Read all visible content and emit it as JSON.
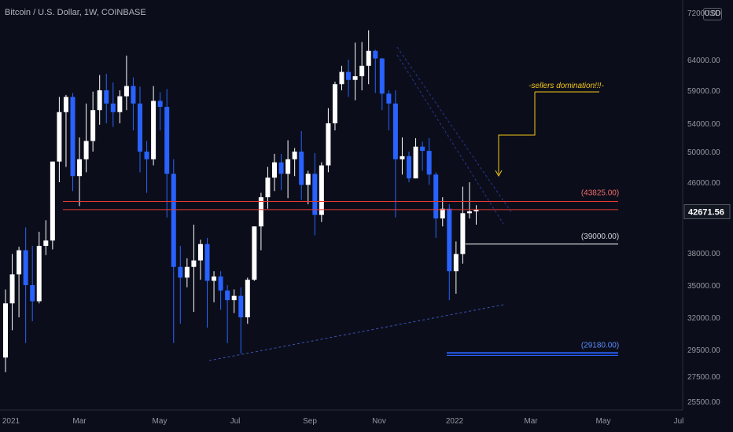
{
  "header": {
    "title": "Bitcoin / U.S. Dollar, 1W, COINBASE"
  },
  "currency_badge": "USD",
  "price_axis": {
    "labels": [
      "72000.00",
      "64000.00",
      "59000.00",
      "54000.00",
      "50000.00",
      "46000.00",
      "42671.56",
      "38000.00",
      "35000.00",
      "32000.00",
      "29500.00",
      "27500.00",
      "25500.00"
    ],
    "current_price": "42671.56",
    "current_price_bg": "#131722"
  },
  "colors": {
    "bull": "#ffffff",
    "bear": "#2962ff",
    "level_red": "#e53935",
    "level_white": "#ffffff",
    "level_blue": "#2962ff",
    "note": "#f5c518",
    "trend": "#3f51b5"
  },
  "chart_data": {
    "type": "candlestick",
    "title": "Bitcoin / U.S. Dollar, 1W, COINBASE",
    "x_ticks": [
      "2021",
      "Mar",
      "May",
      "Jul",
      "Sep",
      "Nov",
      "2022",
      "Mar",
      "May",
      "Jul"
    ],
    "y_ticks": [
      25500,
      27500,
      29500,
      32000,
      35000,
      38000,
      42671.56,
      46000,
      50000,
      54000,
      59000,
      64000,
      72000
    ],
    "ylim": [
      25000,
      74000
    ],
    "candles": [
      [
        28900,
        33300,
        27800,
        34600
      ],
      [
        33300,
        36000,
        31000,
        37900
      ],
      [
        36000,
        38300,
        32000,
        38700
      ],
      [
        38300,
        35000,
        30000,
        40900
      ],
      [
        35000,
        33500,
        31700,
        38800
      ],
      [
        33500,
        38800,
        33300,
        40400
      ],
      [
        38800,
        39400,
        37800,
        41700
      ],
      [
        39400,
        48700,
        38400,
        48700
      ],
      [
        48700,
        55700,
        46000,
        58000
      ],
      [
        55700,
        58000,
        48000,
        58300
      ],
      [
        58000,
        46800,
        45000,
        58600
      ],
      [
        46800,
        49000,
        43300,
        52000
      ],
      [
        49000,
        51500,
        47300,
        57000
      ],
      [
        51500,
        56000,
        50000,
        58800
      ],
      [
        56000,
        59000,
        53800,
        61500
      ],
      [
        59000,
        57000,
        54000,
        61700
      ],
      [
        57000,
        55700,
        53500,
        60300
      ],
      [
        55700,
        58100,
        54000,
        59000
      ],
      [
        58100,
        59700,
        56000,
        64700
      ],
      [
        59700,
        57000,
        53000,
        61100
      ],
      [
        57000,
        50000,
        47300,
        59600
      ],
      [
        50000,
        49000,
        44800,
        51500
      ],
      [
        49000,
        57400,
        48200,
        59700
      ],
      [
        57400,
        56500,
        53000,
        58700
      ],
      [
        56500,
        47100,
        42000,
        59200
      ],
      [
        47100,
        36700,
        30000,
        49000
      ],
      [
        36700,
        35700,
        31500,
        38800
      ],
      [
        35700,
        36700,
        34800,
        37500
      ],
      [
        36700,
        37300,
        32500,
        41200
      ],
      [
        37300,
        39000,
        35500,
        39500
      ],
      [
        39000,
        35400,
        31200,
        39700
      ],
      [
        35400,
        35800,
        33400,
        36300
      ],
      [
        35800,
        34500,
        32700,
        36300
      ],
      [
        34500,
        33600,
        30000,
        35000
      ],
      [
        33600,
        34000,
        32400,
        34600
      ],
      [
        34000,
        32000,
        29200,
        34800
      ],
      [
        32000,
        35500,
        31500,
        35700
      ],
      [
        35500,
        41000,
        35400,
        41000
      ],
      [
        41000,
        44300,
        38300,
        44800
      ],
      [
        44300,
        46600,
        43000,
        48000
      ],
      [
        46600,
        48600,
        45000,
        49700
      ],
      [
        48600,
        47100,
        45100,
        49700
      ],
      [
        47100,
        49000,
        44200,
        51600
      ],
      [
        49000,
        50000,
        46800,
        50500
      ],
      [
        50000,
        45700,
        44000,
        52900
      ],
      [
        45700,
        47100,
        43500,
        47500
      ],
      [
        47100,
        42300,
        40000,
        49800
      ],
      [
        42300,
        48200,
        41500,
        48600
      ],
      [
        48200,
        54000,
        47300,
        56300
      ],
      [
        54000,
        60000,
        53000,
        60400
      ],
      [
        60000,
        62000,
        59000,
        63000
      ],
      [
        62000,
        60700,
        58000,
        64000
      ],
      [
        60700,
        61300,
        57500,
        66900
      ],
      [
        61300,
        63000,
        59000,
        67000
      ],
      [
        63000,
        65500,
        60000,
        69000
      ],
      [
        65500,
        64200,
        58600,
        65700
      ],
      [
        64200,
        58500,
        56000,
        64300
      ],
      [
        58500,
        57000,
        53000,
        59000
      ],
      [
        57000,
        49000,
        42000,
        59000
      ],
      [
        49000,
        49400,
        47000,
        52000
      ],
      [
        49400,
        46500,
        46000,
        50000
      ],
      [
        46500,
        50700,
        46500,
        51900
      ],
      [
        50700,
        50100,
        47500,
        51400
      ],
      [
        50100,
        47000,
        45700,
        51900
      ],
      [
        47000,
        41900,
        39700,
        47300
      ],
      [
        41900,
        43000,
        41000,
        44300
      ],
      [
        43000,
        36300,
        33600,
        43500
      ],
      [
        36300,
        37900,
        34200,
        39300
      ],
      [
        37900,
        42500,
        37000,
        45500
      ],
      [
        42500,
        42700,
        41900,
        46000
      ],
      [
        42700,
        42900,
        41200,
        43400
      ]
    ],
    "levels": [
      {
        "label": "(43825.00)",
        "value": 43825,
        "color": "#e53935"
      },
      {
        "value": 42900,
        "color": "#e53935"
      },
      {
        "label": "(39000.00)",
        "value": 39000,
        "color": "#ffffff"
      },
      {
        "label": "(29180.00)",
        "value": 29180,
        "color": "#2962ff"
      }
    ],
    "annotation": "-sellers domination!!!-"
  }
}
